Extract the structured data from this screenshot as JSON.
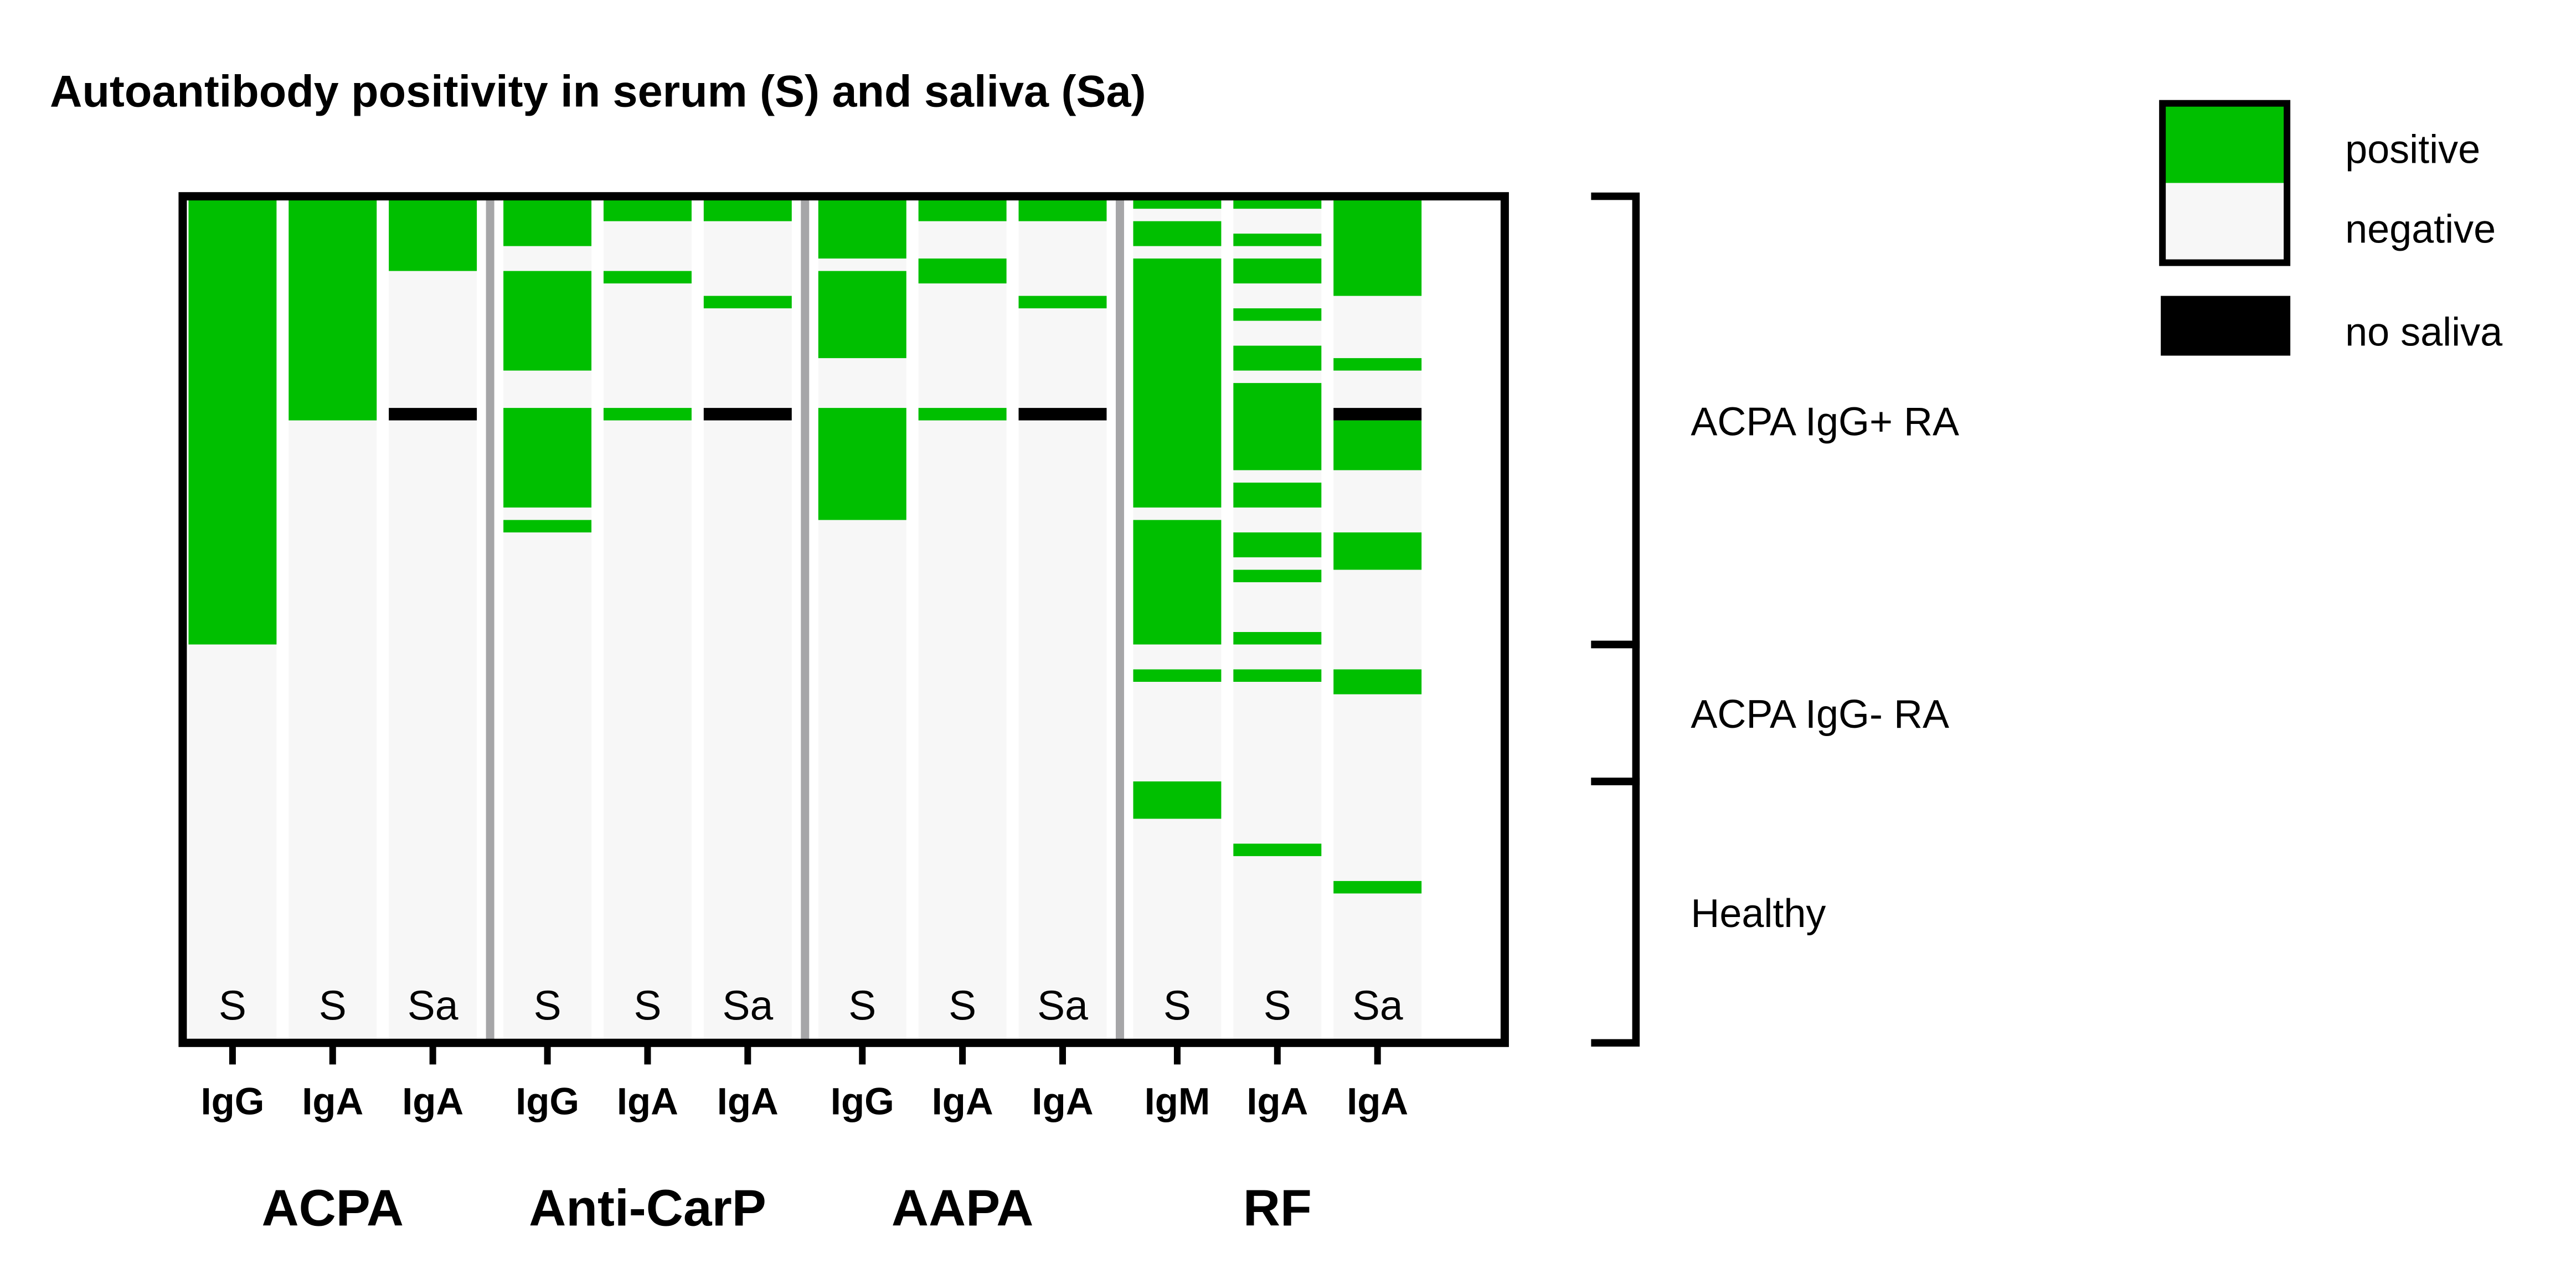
{
  "chart_data": {
    "type": "heatmap",
    "title": "Autoantibody positivity in serum (S) and saliva (Sa)",
    "n_rows": 68,
    "colors": {
      "positive": "#00bf00",
      "negative": "#f7f7f7",
      "no_saliva": "#000000",
      "separator": "#a6a6a8"
    },
    "legend": {
      "placement": "top-right",
      "items": [
        {
          "key": "positive",
          "label": "positive"
        },
        {
          "key": "negative",
          "label": "negative"
        },
        {
          "key": "no_saliva",
          "label": "no saliva"
        }
      ]
    },
    "row_groups": [
      {
        "label": "ACPA IgG+ RA",
        "start": 0,
        "end": 36
      },
      {
        "label": "ACPA IgG- RA",
        "start": 36,
        "end": 47
      },
      {
        "label": "Healthy",
        "start": 47,
        "end": 68
      }
    ],
    "groups": [
      {
        "label": "ACPA",
        "columns": [
          {
            "isotype": "IgG",
            "sample": "S",
            "positive": [
              [
                0,
                36
              ]
            ],
            "no_sample": []
          },
          {
            "isotype": "IgA",
            "sample": "S",
            "positive": [
              [
                0,
                18
              ]
            ],
            "no_sample": []
          },
          {
            "isotype": "IgA",
            "sample": "Sa",
            "positive": [
              [
                0,
                6
              ]
            ],
            "no_sample": [
              [
                17,
                18
              ]
            ]
          }
        ]
      },
      {
        "label": "Anti-CarP",
        "columns": [
          {
            "isotype": "IgG",
            "sample": "S",
            "positive": [
              [
                0,
                4
              ],
              [
                6,
                14
              ],
              [
                17,
                25
              ],
              [
                26,
                27
              ]
            ],
            "no_sample": []
          },
          {
            "isotype": "IgA",
            "sample": "S",
            "positive": [
              [
                0,
                2
              ],
              [
                6,
                7
              ],
              [
                17,
                18
              ]
            ],
            "no_sample": []
          },
          {
            "isotype": "IgA",
            "sample": "Sa",
            "positive": [
              [
                0,
                2
              ],
              [
                8,
                9
              ]
            ],
            "no_sample": [
              [
                17,
                18
              ]
            ]
          }
        ]
      },
      {
        "label": "AAPA",
        "columns": [
          {
            "isotype": "IgG",
            "sample": "S",
            "positive": [
              [
                0,
                5
              ],
              [
                6,
                13
              ],
              [
                17,
                26
              ]
            ],
            "no_sample": []
          },
          {
            "isotype": "IgA",
            "sample": "S",
            "positive": [
              [
                0,
                2
              ],
              [
                5,
                7
              ],
              [
                17,
                18
              ]
            ],
            "no_sample": []
          },
          {
            "isotype": "IgA",
            "sample": "Sa",
            "positive": [
              [
                0,
                2
              ],
              [
                8,
                9
              ]
            ],
            "no_sample": [
              [
                17,
                18
              ]
            ]
          }
        ]
      },
      {
        "label": "RF",
        "columns": [
          {
            "isotype": "IgM",
            "sample": "S",
            "positive": [
              [
                0,
                1
              ],
              [
                2,
                4
              ],
              [
                5,
                25
              ],
              [
                26,
                36
              ],
              [
                38,
                39
              ],
              [
                47,
                50
              ]
            ],
            "no_sample": []
          },
          {
            "isotype": "IgA",
            "sample": "S",
            "positive": [
              [
                0,
                1
              ],
              [
                3,
                4
              ],
              [
                5,
                7
              ],
              [
                9,
                10
              ],
              [
                12,
                14
              ],
              [
                15,
                22
              ],
              [
                23,
                25
              ],
              [
                27,
                29
              ],
              [
                30,
                31
              ],
              [
                35,
                36
              ],
              [
                38,
                39
              ],
              [
                52,
                53
              ]
            ],
            "no_sample": []
          },
          {
            "isotype": "IgA",
            "sample": "Sa",
            "positive": [
              [
                0,
                8
              ],
              [
                13,
                14
              ],
              [
                18,
                22
              ],
              [
                27,
                30
              ],
              [
                38,
                40
              ],
              [
                55,
                56
              ]
            ],
            "no_sample": [
              [
                17,
                18
              ]
            ]
          }
        ]
      }
    ]
  }
}
